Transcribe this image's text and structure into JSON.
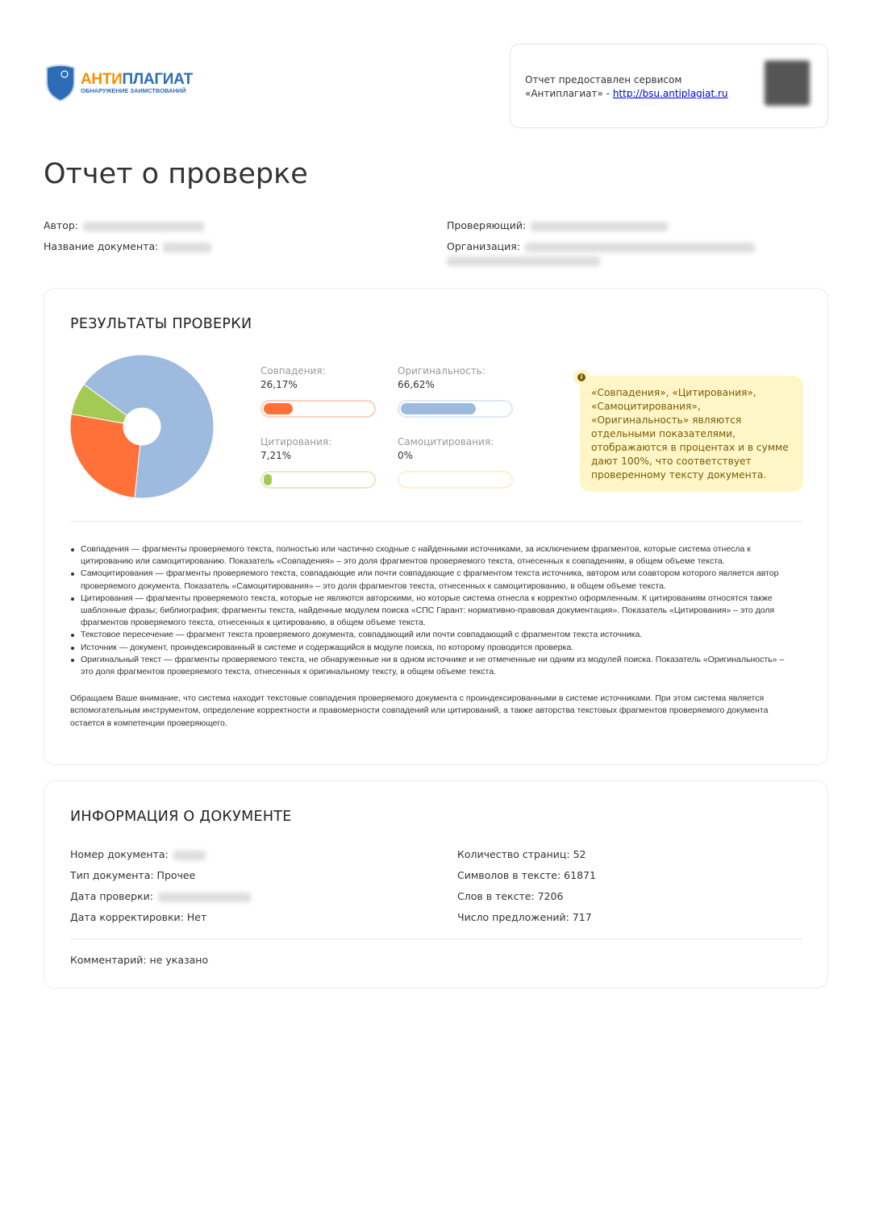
{
  "logo": {
    "main_a": "АНТИ",
    "main_b": "ПЛАГИАТ",
    "sub": "ОБНАРУЖЕНИЕ ЗАИМСТВОВАНИЙ"
  },
  "provider": {
    "line1": "Отчет предоставлен сервисом",
    "line2": "«Антиплагиат» - ",
    "link": "http://bsu.antiplagiat.ru"
  },
  "title": "Отчет о проверке",
  "meta": {
    "author": "Автор:",
    "doc_name": "Название документа:",
    "checker": "Проверяющий:",
    "org": "Организация:"
  },
  "results": {
    "heading": "РЕЗУЛЬТАТЫ ПРОВЕРКИ",
    "colors": {
      "matches": "#ff7139",
      "citations": "#a5c955",
      "self": "#ffd35a",
      "original": "#9dbbdf"
    },
    "stats": [
      {
        "label": "Совпадения:",
        "value": "26,17%",
        "percent": 26.17
      },
      {
        "label": "Оригинальность:",
        "value": "66,62%",
        "percent": 66.62
      },
      {
        "label": "Цитирования:",
        "value": "7,21%",
        "percent": 7.21
      },
      {
        "label": "Самоцитирования:",
        "value": "0%",
        "percent": 0
      }
    ],
    "note": "«Совпадения», «Цитирования», «Самоцитирования», «Оригинальность» являются отдельными показателями, отображаются в процентах и в сумме дают 100%, что соответствует проверенному тексту документа.",
    "definitions": [
      "Совпадения — фрагменты проверяемого текста, полностью или частично сходные с найденными источниками, за исключением фрагментов, которые система отнесла к цитированию или самоцитированию. Показатель «Совпадения» – это доля фрагментов проверяемого текста, отнесенных к совпадениям, в общем объеме текста.",
      "Самоцитирования — фрагменты проверяемого текста, совпадающие или почти совпадающие с фрагментом текста источника, автором или соавтором которого является автор проверяемого документа. Показатель «Самоцитирования» – это доля фрагментов текста, отнесенных к самоцитированию, в общем объеме текста.",
      "Цитирования — фрагменты проверяемого текста, которые не являются авторскими, но которые система отнесла к корректно оформленным. К цитированиям относятся также шаблонные фразы; библиография; фрагменты текста, найденные модулем поиска «СПС Гарант: нормативно-правовая документация». Показатель «Цитирования» – это доля фрагментов проверяемого текста, отнесенных к цитированию, в общем объеме текста.",
      "Текстовое пересечение — фрагмент текста проверяемого документа, совпадающий или почти совпадающий с фрагментом текста источника.",
      "Источник — документ, проиндексированный в системе и содержащийся в модуле поиска, по которому проводится проверка.",
      "Оригинальный текст — фрагменты проверяемого текста, не обнаруженные ни в одном источнике и не отмеченные ни одним из модулей поиска. Показатель «Оригинальность» – это доля фрагментов проверяемого текста, отнесенных к оригинальному тексту, в общем объеме текста."
    ],
    "attention": "Обращаем Ваше внимание, что система находит текстовые совпадения проверяемого документа с проиндексированными в системе источниками. При этом система является вспомогательным инструментом, определение корректности и правомерности совпадений или цитирований, а также авторства текстовых фрагментов проверяемого документа остается в компетенции проверяющего."
  },
  "docinfo": {
    "heading": "ИНФОРМАЦИЯ О ДОКУМЕНТЕ",
    "left": [
      "Номер документа:",
      "Тип документа: Прочее",
      "Дата проверки:",
      "Дата корректировки: Нет"
    ],
    "right": [
      "Количество страниц: 52",
      "Символов в тексте: 61871",
      "Слов в тексте: 7206",
      "Число предложений: 717"
    ],
    "comment": "Комментарий: не указано"
  }
}
